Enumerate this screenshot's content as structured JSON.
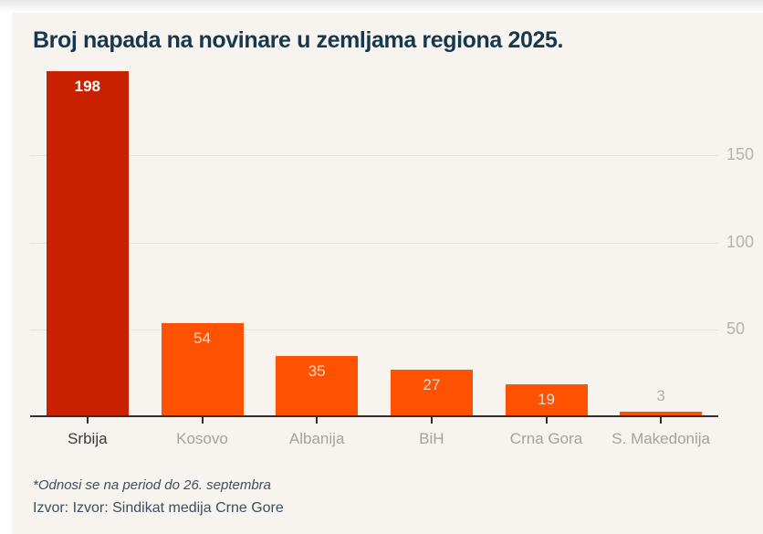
{
  "title": "Broj napada na novinare u zemljama regiona 2025.",
  "chart_data": {
    "type": "bar",
    "title": "Broj napada na novinare u zemljama regiona 2025.",
    "categories": [
      "Srbija",
      "Kosovo",
      "Albanija",
      "BiH",
      "Crna Gora",
      "S. Makedonija"
    ],
    "values": [
      198,
      54,
      35,
      27,
      19,
      3
    ],
    "highlight_index": 0,
    "yticks": [
      50,
      100,
      150
    ],
    "ylim": [
      0,
      204
    ],
    "grid": true,
    "ytick_side": "right",
    "value_labels": "inside-top",
    "xlabel": "",
    "ylabel": ""
  },
  "footnote": "*Odnosi se na period do 26. septembra",
  "source": "Izvor: Izvor: Sindikat medija Crne Gore",
  "colors": {
    "background": "#f7f4ef",
    "bar_highlight": "#c92100",
    "bar_default": "#ff5200",
    "value_label_highlight": "#ffffff",
    "value_label_default": "#e6dcd4",
    "value_label_outside": "#b3ada7",
    "title": "#17384c",
    "category_default": "#a6a19b",
    "category_highlight": "#3a3a3a",
    "gridline": "#e7e4df",
    "axis": "#2f2f2f",
    "ytick_label": "#b6b1ac",
    "footer_text": "#3d4f5e"
  }
}
